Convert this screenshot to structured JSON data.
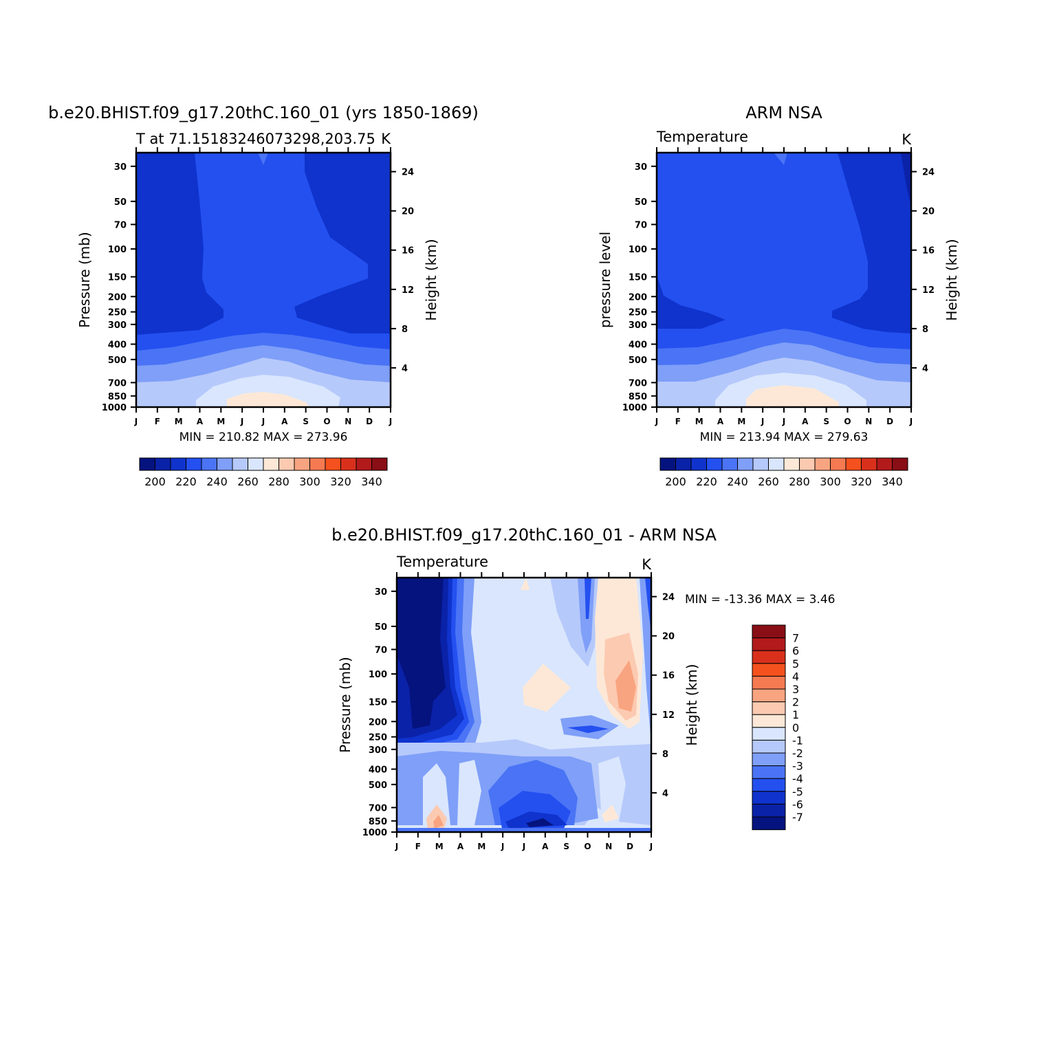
{
  "chart_data": [
    {
      "type": "heatmap",
      "title": "b.e20.BHIST.f09_g17.20thC.160_01 (yrs 1850-1869)",
      "subtitle_left": "T at 71.15183246073298,203.75",
      "subtitle_right": "K",
      "ylabel": "Pressure (mb)",
      "ylabel_right": "Height (km)",
      "x_ticks": [
        "J",
        "F",
        "M",
        "A",
        "M",
        "J",
        "J",
        "A",
        "S",
        "O",
        "N",
        "D",
        "J"
      ],
      "y_ticks": [
        30,
        50,
        70,
        100,
        150,
        200,
        250,
        300,
        400,
        500,
        700,
        850,
        1000
      ],
      "y_ticks_right": [
        24,
        20,
        16,
        12,
        8,
        4
      ],
      "min_max_text": "MIN = 210.82 MAX = 273.96",
      "colorbar_labels": [
        "200",
        "220",
        "240",
        "260",
        "280",
        "300",
        "320",
        "340"
      ],
      "colorbar_colors": [
        "#05137f",
        "#0a22a8",
        "#0f33cc",
        "#2450f0",
        "#4a74f5",
        "#7f9ff8",
        "#b6c9fb",
        "#d9e6fd",
        "#fde8d7",
        "#fccab1",
        "#f8a480",
        "#f57a52",
        "#f4511e",
        "#d9301c",
        "#b21a1b",
        "#890e15"
      ]
    },
    {
      "type": "heatmap",
      "title": "ARM NSA",
      "subtitle_left": "Temperature",
      "subtitle_right": "K",
      "ylabel": "pressure level",
      "ylabel_right": "Height (km)",
      "x_ticks": [
        "J",
        "F",
        "M",
        "A",
        "M",
        "J",
        "J",
        "A",
        "S",
        "O",
        "N",
        "D",
        "J"
      ],
      "y_ticks": [
        30,
        50,
        70,
        100,
        150,
        200,
        250,
        300,
        400,
        500,
        700,
        850,
        1000
      ],
      "y_ticks_right": [
        24,
        20,
        16,
        12,
        8,
        4
      ],
      "min_max_text": "MIN = 213.94 MAX = 279.63",
      "colorbar_labels": [
        "200",
        "220",
        "240",
        "260",
        "280",
        "300",
        "320",
        "340"
      ]
    },
    {
      "type": "heatmap",
      "title": "b.e20.BHIST.f09_g17.20thC.160_01 - ARM NSA",
      "subtitle_left": "Temperature",
      "subtitle_right": "K",
      "ylabel": "Pressure (mb)",
      "ylabel_right": "Height (km)",
      "x_ticks": [
        "J",
        "F",
        "M",
        "A",
        "M",
        "J",
        "J",
        "A",
        "S",
        "O",
        "N",
        "D",
        "J"
      ],
      "y_ticks": [
        30,
        50,
        70,
        100,
        150,
        200,
        250,
        300,
        400,
        500,
        700,
        850,
        1000
      ],
      "y_ticks_right": [
        24,
        20,
        16,
        12,
        8,
        4
      ],
      "min_max_text": "MIN = -13.36 MAX =    3.46",
      "colorbar_labels": [
        "7",
        "6",
        "5",
        "4",
        "3",
        "2",
        "1",
        "0",
        "-1",
        "-2",
        "-3",
        "-4",
        "-5",
        "-6",
        "-7"
      ]
    }
  ]
}
